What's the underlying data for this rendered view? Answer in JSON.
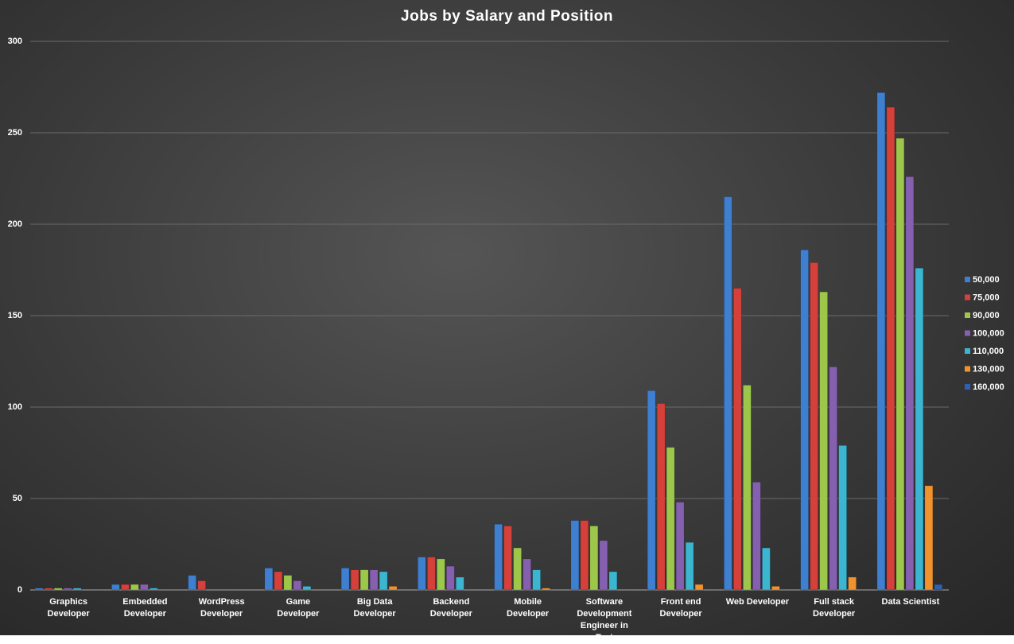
{
  "chart_data": {
    "type": "bar",
    "title": "Jobs by Salary and Position",
    "categories": [
      "Graphics Developer",
      "Embedded Developer",
      "WordPress Developer",
      "Game Developer",
      "Big Data Developer",
      "Backend Developer",
      "Mobile Developer",
      "Software Development Engineer in Test",
      "Front end Developer",
      "Web Developer",
      "Full stack Developer",
      "Data Scientist"
    ],
    "series": [
      {
        "name": "50,000",
        "color": "#3f7fd0",
        "values": [
          1,
          3,
          8,
          12,
          12,
          18,
          36,
          38,
          109,
          215,
          186,
          272
        ]
      },
      {
        "name": "75,000",
        "color": "#d6403a",
        "values": [
          1,
          3,
          5,
          10,
          11,
          18,
          35,
          38,
          102,
          165,
          179,
          264
        ]
      },
      {
        "name": "90,000",
        "color": "#9cc74a",
        "values": [
          1,
          3,
          0,
          8,
          11,
          17,
          23,
          35,
          78,
          112,
          163,
          247
        ]
      },
      {
        "name": "100,000",
        "color": "#8560b0",
        "values": [
          1,
          3,
          0,
          5,
          11,
          13,
          17,
          27,
          48,
          59,
          122,
          226
        ]
      },
      {
        "name": "110,000",
        "color": "#3bb5d0",
        "values": [
          1,
          1,
          0,
          2,
          10,
          7,
          11,
          10,
          26,
          23,
          79,
          176
        ]
      },
      {
        "name": "130,000",
        "color": "#f0922e",
        "values": [
          0,
          0,
          0,
          0,
          2,
          0,
          1,
          0,
          3,
          2,
          7,
          57
        ]
      },
      {
        "name": "160,000",
        "color": "#2f5fb0",
        "values": [
          0,
          0,
          0,
          0,
          0,
          0,
          0,
          0,
          0,
          0,
          0,
          3
        ]
      }
    ],
    "ylim": [
      0,
      300
    ],
    "yticks": [
      0,
      50,
      100,
      150,
      200,
      250,
      300
    ],
    "grid": true,
    "legend": "right"
  }
}
